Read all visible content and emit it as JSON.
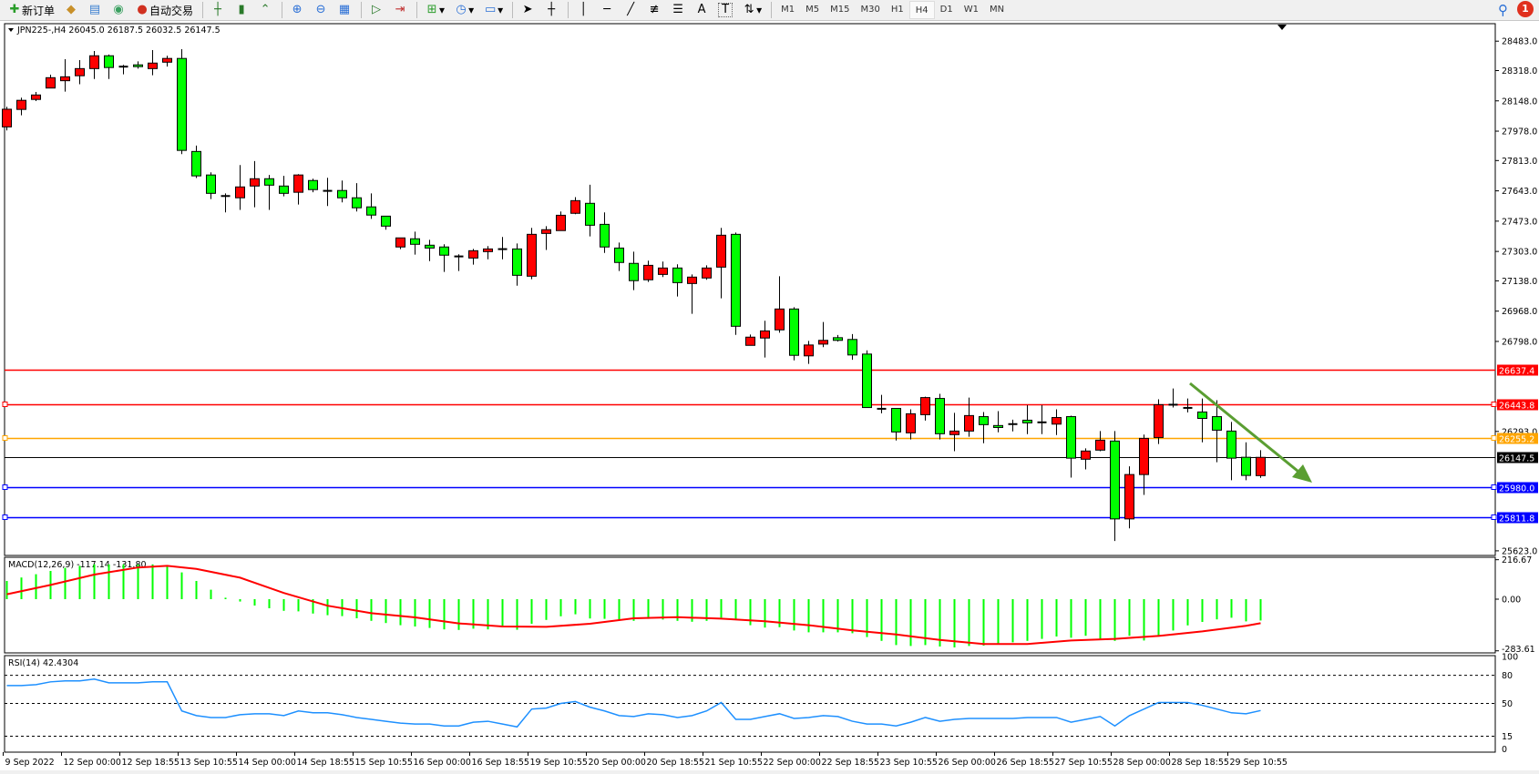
{
  "toolbar": {
    "new_order": "新订单",
    "auto_trading": "自动交易",
    "timeframes": [
      "M1",
      "M5",
      "M15",
      "M30",
      "H1",
      "H4",
      "D1",
      "W1",
      "MN"
    ],
    "active_timeframe": "H4",
    "notification_count": "1",
    "icons": [
      "new-order-icon",
      "gold-icon",
      "market-watch-icon",
      "signals-icon",
      "auto-trading-icon",
      "bar-chart-icon",
      "candlestick-icon",
      "line-chart-icon",
      "zoom-in-icon",
      "zoom-out-icon",
      "tile-windows-icon",
      "auto-scroll-icon",
      "chart-shift-icon",
      "indicators-icon",
      "periods-icon",
      "templates-icon",
      "cursor-icon",
      "crosshair-icon",
      "vertical-line-icon",
      "horizontal-line-icon",
      "trendline-icon",
      "fibonacci-e-icon",
      "fibonacci-f-icon",
      "text-icon",
      "label-icon",
      "arrows-icon"
    ]
  },
  "chart": {
    "symbol_info": "JPN225-,H4  26045.0 26187.5 26032.5 26147.5",
    "bull_color": "#ff0000",
    "bear_color": "#00ff00",
    "price_ticks": [
      "28483.0",
      "28318.0",
      "28148.0",
      "27978.0",
      "27813.0",
      "27643.0",
      "27473.0",
      "27303.0",
      "27138.0",
      "26968.0",
      "26798.0",
      "26293.0",
      "25623.0"
    ],
    "levels": [
      {
        "price": 26637.4,
        "label": "26637.4",
        "color": "#ff0000",
        "handles": false
      },
      {
        "price": 26443.8,
        "label": "26443.8",
        "color": "#ff0000",
        "handles": true
      },
      {
        "price": 26255.2,
        "label": "26255.2",
        "color": "#ffa500",
        "handles": true
      },
      {
        "price": 26147.5,
        "label": "26147.5",
        "color": "#000000",
        "handles": false
      },
      {
        "price": 25980.0,
        "label": "25980.0",
        "color": "#0000ff",
        "handles": true
      },
      {
        "price": 25811.8,
        "label": "25811.8",
        "color": "#0000ff",
        "handles": true
      }
    ],
    "arrow_color": "#5a9e32",
    "time_labels": [
      "9 Sep 2022",
      "12 Sep 00:00",
      "12 Sep 18:55",
      "13 Sep 10:55",
      "14 Sep 00:00",
      "14 Sep 18:55",
      "15 Sep 10:55",
      "16 Sep 00:00",
      "16 Sep 18:55",
      "19 Sep 10:55",
      "20 Sep 00:00",
      "20 Sep 18:55",
      "21 Sep 10:55",
      "22 Sep 00:00",
      "22 Sep 18:55",
      "23 Sep 10:55",
      "26 Sep 00:00",
      "26 Sep 18:55",
      "27 Sep 10:55",
      "28 Sep 00:00",
      "28 Sep 18:55",
      "29 Sep 10:55"
    ],
    "ohlc": [
      [
        28002,
        28115,
        27982,
        28101
      ],
      [
        28100,
        28166,
        28067,
        28151
      ],
      [
        28156,
        28198,
        28147,
        28181
      ],
      [
        28220,
        28295,
        28220,
        28278
      ],
      [
        28261,
        28382,
        28200,
        28283
      ],
      [
        28289,
        28377,
        28241,
        28329
      ],
      [
        28329,
        28428,
        28271,
        28401
      ],
      [
        28401,
        28408,
        28271,
        28335
      ],
      [
        28340,
        28350,
        28297,
        28340
      ],
      [
        28350,
        28370,
        28329,
        28340
      ],
      [
        28329,
        28433,
        28292,
        28360
      ],
      [
        28365,
        28401,
        28340,
        28386
      ],
      [
        28386,
        28438,
        27849,
        27870
      ],
      [
        27864,
        27897,
        27715,
        27727
      ],
      [
        27732,
        27747,
        27597,
        27629
      ],
      [
        27614,
        27629,
        27522,
        27614
      ],
      [
        27604,
        27788,
        27536,
        27665
      ],
      [
        27670,
        27810,
        27551,
        27711
      ],
      [
        27711,
        27732,
        27536,
        27675
      ],
      [
        27670,
        27727,
        27612,
        27629
      ],
      [
        27635,
        27737,
        27566,
        27732
      ],
      [
        27701,
        27711,
        27635,
        27650
      ],
      [
        27643,
        27716,
        27558,
        27643
      ],
      [
        27645,
        27701,
        27578,
        27604
      ],
      [
        27604,
        27686,
        27527,
        27548
      ],
      [
        27553,
        27629,
        27486,
        27507
      ],
      [
        27501,
        27501,
        27425,
        27445
      ],
      [
        27328,
        27379,
        27316,
        27379
      ],
      [
        27374,
        27414,
        27285,
        27343
      ],
      [
        27338,
        27368,
        27249,
        27322
      ],
      [
        27328,
        27343,
        27188,
        27282
      ],
      [
        27275,
        27287,
        27193,
        27275
      ],
      [
        27266,
        27317,
        27229,
        27307
      ],
      [
        27302,
        27333,
        27259,
        27317
      ],
      [
        27316,
        27384,
        27259,
        27316
      ],
      [
        27317,
        27348,
        27111,
        27169
      ],
      [
        27164,
        27435,
        27147,
        27399
      ],
      [
        27404,
        27445,
        27311,
        27425
      ],
      [
        27420,
        27527,
        27420,
        27506
      ],
      [
        27517,
        27608,
        27512,
        27588
      ],
      [
        27573,
        27677,
        27387,
        27450
      ],
      [
        27455,
        27522,
        27295,
        27328
      ],
      [
        27322,
        27353,
        27193,
        27241
      ],
      [
        27236,
        27302,
        27086,
        27139
      ],
      [
        27144,
        27251,
        27132,
        27225
      ],
      [
        27174,
        27246,
        27159,
        27210
      ],
      [
        27210,
        27231,
        27050,
        27128
      ],
      [
        27123,
        27174,
        26953,
        27159
      ],
      [
        27154,
        27225,
        27144,
        27210
      ],
      [
        27215,
        27435,
        27040,
        27394
      ],
      [
        27399,
        27409,
        26835,
        26883
      ],
      [
        26776,
        26837,
        26776,
        26822
      ],
      [
        26817,
        26914,
        26708,
        26857
      ],
      [
        26863,
        27164,
        26847,
        26980
      ],
      [
        26980,
        26990,
        26692,
        26720
      ],
      [
        26717,
        26801,
        26672,
        26778
      ],
      [
        26783,
        26907,
        26766,
        26804
      ],
      [
        26819,
        26834,
        26797,
        26804
      ],
      [
        26809,
        26839,
        26695,
        26722
      ],
      [
        26727,
        26748,
        26427,
        26427
      ],
      [
        26420,
        26498,
        26395,
        26420
      ],
      [
        26422,
        26422,
        26242,
        26290
      ],
      [
        26285,
        26417,
        26248,
        26392
      ],
      [
        26387,
        26488,
        26354,
        26483
      ],
      [
        26478,
        26504,
        26248,
        26280
      ],
      [
        26275,
        26397,
        26182,
        26295
      ],
      [
        26295,
        26483,
        26263,
        26382
      ],
      [
        26376,
        26402,
        26227,
        26331
      ],
      [
        26326,
        26407,
        26288,
        26315
      ],
      [
        26334,
        26359,
        26293,
        26334
      ],
      [
        26356,
        26441,
        26278,
        26341
      ],
      [
        26344,
        26441,
        26278,
        26344
      ],
      [
        26334,
        26417,
        26273,
        26371
      ],
      [
        26376,
        26381,
        26034,
        26143
      ],
      [
        26137,
        26198,
        26080,
        26183
      ],
      [
        26188,
        26295,
        26182,
        26244
      ],
      [
        26239,
        26295,
        25678,
        25802
      ],
      [
        25802,
        26097,
        25749,
        26051
      ],
      [
        26051,
        26275,
        25937,
        26254
      ],
      [
        26259,
        26473,
        26222,
        26443
      ],
      [
        26443,
        26534,
        26427,
        26436
      ],
      [
        26425,
        26478,
        26400,
        26425
      ],
      [
        26402,
        26478,
        26232,
        26366
      ],
      [
        26376,
        26468,
        26120,
        26300
      ],
      [
        26295,
        26346,
        26019,
        26143
      ],
      [
        26148,
        26232,
        26019,
        26046
      ],
      [
        26045.0,
        26187.5,
        26032.5,
        26147.5
      ]
    ]
  },
  "macd": {
    "label": "MACD(12,26,9) -117.14 -131.80",
    "ticks": [
      "216.67",
      "0.00",
      "-283.61"
    ],
    "hist_color": "#00ff00",
    "signal_color": "#ff0000",
    "histogram": [
      100,
      119,
      137,
      155,
      172,
      183,
      191,
      191,
      191,
      191,
      191,
      183,
      147,
      100,
      52,
      8,
      -13,
      -35,
      -50,
      -64,
      -67,
      -79,
      -88,
      -93,
      -105,
      -119,
      -131,
      -143,
      -150,
      -158,
      -166,
      -169,
      -162,
      -166,
      -155,
      -168,
      -135,
      -114,
      -94,
      -83,
      -106,
      -108,
      -112,
      -119,
      -108,
      -112,
      -119,
      -124,
      -119,
      -102,
      -114,
      -143,
      -156,
      -154,
      -172,
      -182,
      -182,
      -182,
      -187,
      -208,
      -229,
      -252,
      -257,
      -252,
      -260,
      -265,
      -257,
      -255,
      -245,
      -237,
      -229,
      -218,
      -205,
      -212,
      -201,
      -224,
      -229,
      -201,
      -227,
      -205,
      -172,
      -144,
      -125,
      -111,
      -102,
      -122,
      -117.14
    ],
    "signal_points": [
      [
        1,
        27
      ],
      [
        4,
        78
      ],
      [
        7,
        135
      ],
      [
        10,
        174
      ],
      [
        12,
        183
      ],
      [
        14,
        166
      ],
      [
        17,
        118
      ],
      [
        20,
        34
      ],
      [
        23,
        -36
      ],
      [
        26,
        -77
      ],
      [
        29,
        -100
      ],
      [
        32,
        -133
      ],
      [
        35,
        -150
      ],
      [
        38,
        -152
      ],
      [
        41,
        -135
      ],
      [
        44,
        -105
      ],
      [
        47,
        -99
      ],
      [
        50,
        -107
      ],
      [
        53,
        -121
      ],
      [
        56,
        -143
      ],
      [
        59,
        -171
      ],
      [
        62,
        -194
      ],
      [
        65,
        -224
      ],
      [
        68,
        -246
      ],
      [
        71,
        -246
      ],
      [
        74,
        -227
      ],
      [
        77,
        -218
      ],
      [
        80,
        -202
      ],
      [
        83,
        -177
      ],
      [
        86,
        -146
      ],
      [
        87,
        -131.8
      ]
    ],
    "range": [
      -283.61,
      216.67
    ]
  },
  "rsi": {
    "label": "RSI(14) 42.4304",
    "ticks": [
      "100",
      "80",
      "50",
      "15",
      "0"
    ],
    "levels": [
      80,
      50,
      15
    ],
    "color": "#1e90ff",
    "values": [
      69,
      69,
      70,
      73,
      74,
      74,
      76,
      72,
      72,
      72,
      73,
      73,
      42,
      37,
      35,
      35,
      38,
      39,
      39,
      37,
      42,
      40,
      40,
      38,
      35,
      33,
      31,
      29,
      28,
      28,
      26,
      26,
      30,
      31,
      28,
      25,
      44,
      45,
      50,
      52,
      46,
      42,
      37,
      36,
      39,
      38,
      35,
      37,
      42,
      51,
      33,
      33,
      36,
      39,
      34,
      35,
      37,
      36,
      31,
      28,
      28,
      26,
      30,
      35,
      31,
      33,
      34,
      34,
      34,
      34,
      35,
      35,
      35,
      30,
      33,
      36,
      26,
      37,
      44,
      51,
      51,
      51,
      48,
      44,
      40,
      39,
      42.43
    ]
  }
}
